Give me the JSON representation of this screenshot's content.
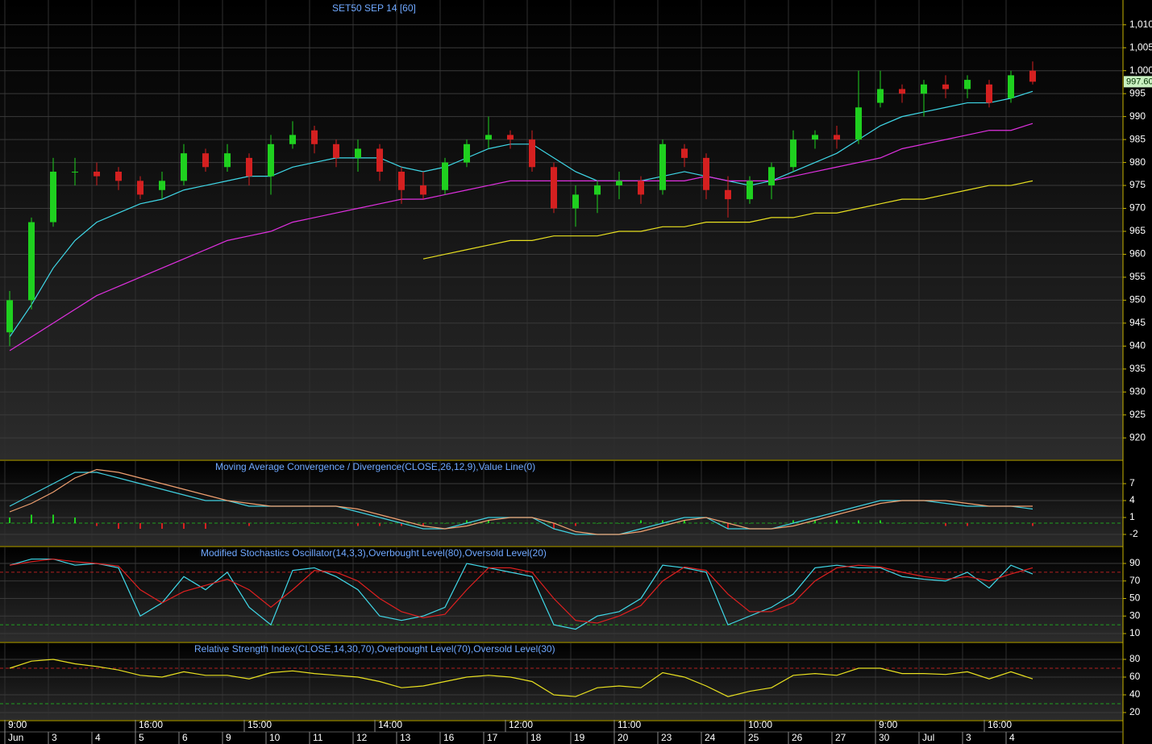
{
  "chart_data": [
    {
      "type": "candlestick",
      "title": "SET50 SEP 14  [60]",
      "categories": [
        "Jun",
        null,
        "3",
        null,
        "4",
        null,
        "5",
        null,
        "6",
        null,
        "9",
        null,
        "10",
        null,
        "11",
        null,
        "12",
        null,
        "13",
        null,
        "16",
        null,
        "17",
        null,
        "18",
        null,
        "19",
        null,
        "20",
        null,
        "23",
        null,
        "24",
        null,
        "25",
        null,
        "26",
        null,
        "27",
        null,
        "30",
        null,
        "Jul",
        null,
        "3",
        null,
        "4",
        null
      ],
      "time_labels": [
        "9:00",
        null,
        null,
        null,
        null,
        null,
        "16:00",
        null,
        null,
        null,
        null,
        "15:00",
        null,
        null,
        null,
        null,
        null,
        "14:00",
        null,
        null,
        null,
        null,
        null,
        "12:00",
        null,
        null,
        null,
        null,
        "11:00",
        null,
        null,
        null,
        null,
        null,
        "10:00",
        null,
        null,
        null,
        null,
        null,
        "9:00",
        null,
        null,
        null,
        null,
        "16:00",
        null,
        null
      ],
      "open": [
        943,
        950,
        967,
        978,
        978,
        978,
        976,
        974,
        976,
        982,
        979,
        981,
        977,
        984,
        987,
        984,
        981,
        983,
        978,
        975,
        974,
        980,
        985,
        986,
        985,
        979,
        970,
        973,
        975,
        976,
        974,
        983,
        981,
        974,
        972,
        975,
        979,
        985,
        986,
        985,
        993,
        996,
        995,
        997,
        996,
        997,
        994,
        1000
      ],
      "high": [
        952,
        968,
        981,
        981,
        980,
        979,
        977,
        978,
        984,
        983,
        984,
        982,
        986,
        989,
        988,
        985,
        985,
        984,
        979,
        978,
        981,
        985,
        990,
        987,
        987,
        980,
        975,
        976,
        978,
        977,
        985,
        984,
        982,
        977,
        977,
        980,
        987,
        987,
        988,
        1000,
        1000,
        997,
        998,
        999,
        999,
        998,
        1000,
        1002
      ],
      "low": [
        940,
        948,
        966,
        975,
        975,
        974,
        972,
        972,
        975,
        978,
        978,
        975,
        973,
        983,
        982,
        979,
        978,
        976,
        971,
        972,
        973,
        979,
        983,
        983,
        978,
        969,
        966,
        969,
        972,
        971,
        973,
        979,
        972,
        968,
        971,
        972,
        978,
        983,
        983,
        984,
        992,
        993,
        990,
        994,
        994,
        992,
        993,
        997
      ],
      "close": [
        950,
        967,
        978,
        978,
        977,
        976,
        973,
        976,
        982,
        979,
        982,
        977,
        984,
        986,
        984,
        981,
        983,
        978,
        974,
        973,
        980,
        984,
        986,
        985,
        979,
        970,
        973,
        975,
        976,
        973,
        984,
        981,
        974,
        972,
        976,
        979,
        985,
        986,
        985,
        992,
        996,
        995,
        997,
        996,
        998,
        993,
        999,
        997.6
      ],
      "up_color": "#1fd01f",
      "down_color": "#d42020",
      "series": [
        {
          "color": "#3fd8e8",
          "values": [
            942,
            949,
            957,
            963,
            967,
            969,
            971,
            972,
            974,
            975,
            976,
            977,
            977,
            979,
            980,
            981,
            981,
            981,
            979,
            978,
            979,
            981,
            983,
            984,
            984,
            981,
            978,
            976,
            976,
            976,
            977,
            978,
            977,
            976,
            975,
            976,
            978,
            980,
            982,
            985,
            988,
            990,
            991,
            992,
            993,
            993,
            994,
            995.5
          ]
        },
        {
          "color": "#e030e0",
          "values": [
            939,
            942,
            945,
            948,
            951,
            953,
            955,
            957,
            959,
            961,
            963,
            964,
            965,
            967,
            968,
            969,
            970,
            971,
            972,
            972,
            973,
            974,
            975,
            976,
            976,
            976,
            976,
            976,
            976,
            976,
            976,
            976,
            977,
            976,
            976,
            976,
            977,
            978,
            979,
            980,
            981,
            983,
            984,
            985,
            986,
            987,
            987,
            988.5
          ]
        },
        {
          "color": "#e8e020",
          "values": [
            null,
            null,
            null,
            null,
            null,
            null,
            null,
            null,
            null,
            null,
            null,
            null,
            null,
            null,
            null,
            null,
            null,
            null,
            null,
            959,
            960,
            961,
            962,
            963,
            963,
            964,
            964,
            964,
            965,
            965,
            966,
            966,
            967,
            967,
            967,
            968,
            968,
            969,
            969,
            970,
            971,
            972,
            972,
            973,
            974,
            975,
            975,
            976
          ]
        }
      ],
      "ylim": [
        915.3,
        1015.4
      ],
      "yticks": [
        {
          "value": 1010,
          "label": "1,010"
        },
        {
          "value": 1005,
          "label": "1,005"
        },
        {
          "value": 1000,
          "label": "1,000"
        },
        995,
        990,
        985,
        980,
        975,
        970,
        965,
        960,
        955,
        950,
        945,
        940,
        935,
        930,
        925,
        920
      ],
      "last_price": {
        "value": 997.6,
        "label": "997.60"
      },
      "grid": true
    },
    {
      "type": "macd",
      "title": "Moving Average Convergence / Divergence(CLOSE,26,12,9),Value Line(0)",
      "series": [
        {
          "color": "#40d0e0",
          "values": [
            3,
            5,
            7,
            9,
            9,
            8,
            7,
            6,
            5,
            4,
            4,
            3,
            3,
            3,
            3,
            3,
            2,
            1,
            0,
            -1,
            -1,
            0,
            1,
            1,
            1,
            -1,
            -2,
            -2,
            -2,
            -1,
            0,
            1,
            1,
            -1,
            -1,
            -1,
            0,
            1,
            2,
            3,
            4,
            4,
            4,
            3.5,
            3,
            3,
            3,
            2.5
          ]
        },
        {
          "color": "#f0a070",
          "values": [
            2,
            3.5,
            5.5,
            8,
            9.5,
            9,
            8,
            7,
            6,
            5,
            4,
            3.5,
            3,
            3,
            3,
            3,
            2.5,
            1.5,
            0.5,
            -0.5,
            -1,
            -0.5,
            0.5,
            1,
            1,
            0,
            -1.5,
            -2,
            -2,
            -1.5,
            -0.5,
            0.5,
            1,
            0,
            -1,
            -1,
            -0.5,
            0.5,
            1.5,
            2.5,
            3.5,
            4,
            4,
            4,
            3.5,
            3,
            3,
            3
          ]
        }
      ],
      "histogram": {
        "up_color": "#1fd01f",
        "down_color": "#d42020",
        "values": [
          1,
          1.5,
          1.5,
          1,
          -0.5,
          -1,
          -1,
          -1,
          -1,
          -1,
          0,
          -0.5,
          0,
          0,
          0,
          0,
          -0.5,
          -0.5,
          -0.5,
          -0.5,
          0,
          0.5,
          0.5,
          0,
          0,
          -1,
          -0.5,
          0,
          0,
          0.5,
          0.5,
          0.5,
          0,
          -1,
          0,
          0,
          0.5,
          0.5,
          0.5,
          0.5,
          0.5,
          0,
          0,
          -0.5,
          -0.5,
          0,
          0,
          -0.5
        ]
      },
      "levels": [
        {
          "value": 0,
          "color": "#20a020"
        }
      ],
      "ylim": [
        -4,
        11
      ],
      "yticks": [
        7,
        4,
        1,
        -2
      ],
      "grid": true
    },
    {
      "type": "line",
      "title": "Modified Stochastics Oscillator(14,3,3),Overbought Level(80),Oversold Level(20)",
      "series": [
        {
          "color": "#40d8e8",
          "values": [
            88,
            95,
            95,
            88,
            90,
            85,
            30,
            45,
            75,
            60,
            80,
            40,
            20,
            82,
            85,
            75,
            60,
            30,
            25,
            30,
            40,
            90,
            85,
            80,
            75,
            20,
            15,
            30,
            35,
            50,
            88,
            85,
            80,
            20,
            30,
            40,
            55,
            85,
            88,
            85,
            85,
            75,
            72,
            70,
            80,
            62,
            88,
            78
          ]
        },
        {
          "color": "#e02020",
          "values": [
            88,
            92,
            95,
            92,
            90,
            87,
            60,
            45,
            58,
            65,
            72,
            60,
            40,
            60,
            82,
            80,
            70,
            50,
            35,
            28,
            32,
            60,
            85,
            85,
            80,
            50,
            25,
            22,
            30,
            42,
            70,
            86,
            82,
            55,
            35,
            35,
            45,
            70,
            85,
            88,
            86,
            80,
            75,
            72,
            75,
            70,
            78,
            85
          ]
        }
      ],
      "levels": [
        {
          "value": 80,
          "color": "#b02020"
        },
        {
          "value": 20,
          "color": "#20a020"
        }
      ],
      "ylim": [
        0.8,
        108.4
      ],
      "yticks": [
        90,
        70,
        50,
        30,
        10
      ],
      "grid": true
    },
    {
      "type": "line",
      "title": "Relative Strength Index(CLOSE,14,30,70),Overbought Level(70),Oversold Level(30)",
      "series": [
        {
          "color": "#e8e020",
          "values": [
            70,
            78,
            80,
            75,
            72,
            68,
            62,
            60,
            66,
            62,
            62,
            58,
            65,
            67,
            64,
            62,
            60,
            55,
            48,
            50,
            55,
            60,
            62,
            60,
            55,
            40,
            38,
            48,
            50,
            48,
            65,
            60,
            50,
            38,
            44,
            48,
            62,
            64,
            62,
            70,
            70,
            64,
            64,
            63,
            66,
            58,
            66,
            58
          ]
        }
      ],
      "levels": [
        {
          "value": 70,
          "color": "#b02020"
        },
        {
          "value": 30,
          "color": "#20a020"
        }
      ],
      "ylim": [
        11.8,
        98.2
      ],
      "yticks": [
        80,
        60,
        40,
        20
      ],
      "grid": true
    }
  ]
}
